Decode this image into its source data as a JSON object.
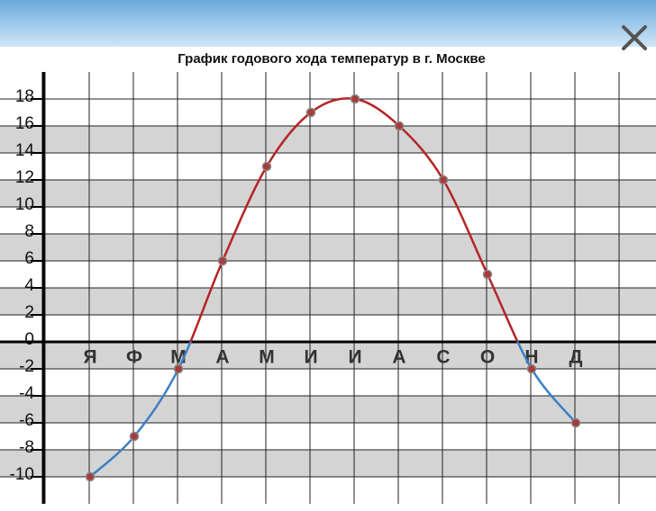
{
  "chart_data": {
    "type": "line",
    "title": "График годового хода температур в г. Москве",
    "categories": [
      "Я",
      "Ф",
      "М",
      "А",
      "М",
      "И",
      "И",
      "А",
      "С",
      "О",
      "Н",
      "Д"
    ],
    "values": [
      -10,
      -7,
      -2,
      6,
      13,
      17,
      18,
      16,
      12,
      5,
      -2,
      -6
    ],
    "color_above": "#b52424",
    "color_below": "#3b7fc4",
    "marker_color": "#a83a3a",
    "ylim": [
      -12,
      20
    ],
    "yticks": [
      -10,
      -8,
      -6,
      -4,
      -2,
      0,
      2,
      4,
      6,
      8,
      10,
      12,
      14,
      16,
      18
    ],
    "grid": true
  }
}
